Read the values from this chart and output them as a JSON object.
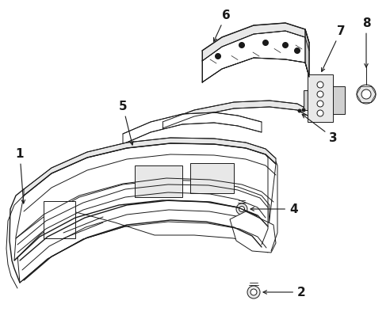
{
  "background_color": "#ffffff",
  "line_color": "#1a1a1a",
  "fig_width": 4.92,
  "fig_height": 4.14,
  "dpi": 100,
  "label_fontsize": 11,
  "label_fontweight": "bold"
}
